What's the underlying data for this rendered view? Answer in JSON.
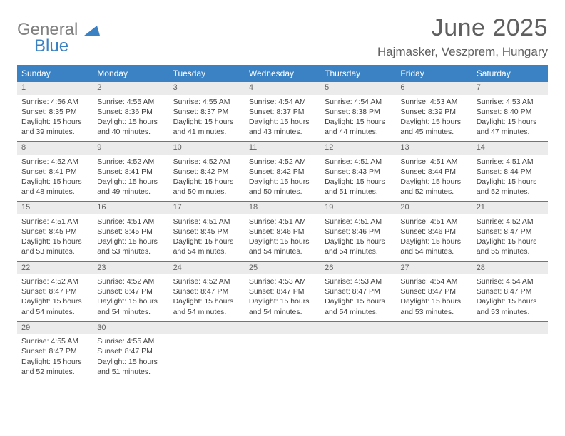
{
  "logo": {
    "general": "General",
    "blue": "Blue"
  },
  "title": "June 2025",
  "location": "Hajmasker, Veszprem, Hungary",
  "colors": {
    "header_bg": "#3b82c4",
    "header_text": "#ffffff",
    "daynum_bg": "#ebebeb",
    "body_text": "#404040",
    "title_text": "#606060"
  },
  "daynames": [
    "Sunday",
    "Monday",
    "Tuesday",
    "Wednesday",
    "Thursday",
    "Friday",
    "Saturday"
  ],
  "weeks": [
    [
      {
        "n": "1",
        "sr": "4:56 AM",
        "ss": "8:35 PM",
        "dl": "15 hours and 39 minutes."
      },
      {
        "n": "2",
        "sr": "4:55 AM",
        "ss": "8:36 PM",
        "dl": "15 hours and 40 minutes."
      },
      {
        "n": "3",
        "sr": "4:55 AM",
        "ss": "8:37 PM",
        "dl": "15 hours and 41 minutes."
      },
      {
        "n": "4",
        "sr": "4:54 AM",
        "ss": "8:37 PM",
        "dl": "15 hours and 43 minutes."
      },
      {
        "n": "5",
        "sr": "4:54 AM",
        "ss": "8:38 PM",
        "dl": "15 hours and 44 minutes."
      },
      {
        "n": "6",
        "sr": "4:53 AM",
        "ss": "8:39 PM",
        "dl": "15 hours and 45 minutes."
      },
      {
        "n": "7",
        "sr": "4:53 AM",
        "ss": "8:40 PM",
        "dl": "15 hours and 47 minutes."
      }
    ],
    [
      {
        "n": "8",
        "sr": "4:52 AM",
        "ss": "8:41 PM",
        "dl": "15 hours and 48 minutes."
      },
      {
        "n": "9",
        "sr": "4:52 AM",
        "ss": "8:41 PM",
        "dl": "15 hours and 49 minutes."
      },
      {
        "n": "10",
        "sr": "4:52 AM",
        "ss": "8:42 PM",
        "dl": "15 hours and 50 minutes."
      },
      {
        "n": "11",
        "sr": "4:52 AM",
        "ss": "8:42 PM",
        "dl": "15 hours and 50 minutes."
      },
      {
        "n": "12",
        "sr": "4:51 AM",
        "ss": "8:43 PM",
        "dl": "15 hours and 51 minutes."
      },
      {
        "n": "13",
        "sr": "4:51 AM",
        "ss": "8:44 PM",
        "dl": "15 hours and 52 minutes."
      },
      {
        "n": "14",
        "sr": "4:51 AM",
        "ss": "8:44 PM",
        "dl": "15 hours and 52 minutes."
      }
    ],
    [
      {
        "n": "15",
        "sr": "4:51 AM",
        "ss": "8:45 PM",
        "dl": "15 hours and 53 minutes."
      },
      {
        "n": "16",
        "sr": "4:51 AM",
        "ss": "8:45 PM",
        "dl": "15 hours and 53 minutes."
      },
      {
        "n": "17",
        "sr": "4:51 AM",
        "ss": "8:45 PM",
        "dl": "15 hours and 54 minutes."
      },
      {
        "n": "18",
        "sr": "4:51 AM",
        "ss": "8:46 PM",
        "dl": "15 hours and 54 minutes."
      },
      {
        "n": "19",
        "sr": "4:51 AM",
        "ss": "8:46 PM",
        "dl": "15 hours and 54 minutes."
      },
      {
        "n": "20",
        "sr": "4:51 AM",
        "ss": "8:46 PM",
        "dl": "15 hours and 54 minutes."
      },
      {
        "n": "21",
        "sr": "4:52 AM",
        "ss": "8:47 PM",
        "dl": "15 hours and 55 minutes."
      }
    ],
    [
      {
        "n": "22",
        "sr": "4:52 AM",
        "ss": "8:47 PM",
        "dl": "15 hours and 54 minutes."
      },
      {
        "n": "23",
        "sr": "4:52 AM",
        "ss": "8:47 PM",
        "dl": "15 hours and 54 minutes."
      },
      {
        "n": "24",
        "sr": "4:52 AM",
        "ss": "8:47 PM",
        "dl": "15 hours and 54 minutes."
      },
      {
        "n": "25",
        "sr": "4:53 AM",
        "ss": "8:47 PM",
        "dl": "15 hours and 54 minutes."
      },
      {
        "n": "26",
        "sr": "4:53 AM",
        "ss": "8:47 PM",
        "dl": "15 hours and 54 minutes."
      },
      {
        "n": "27",
        "sr": "4:54 AM",
        "ss": "8:47 PM",
        "dl": "15 hours and 53 minutes."
      },
      {
        "n": "28",
        "sr": "4:54 AM",
        "ss": "8:47 PM",
        "dl": "15 hours and 53 minutes."
      }
    ],
    [
      {
        "n": "29",
        "sr": "4:55 AM",
        "ss": "8:47 PM",
        "dl": "15 hours and 52 minutes."
      },
      {
        "n": "30",
        "sr": "4:55 AM",
        "ss": "8:47 PM",
        "dl": "15 hours and 51 minutes."
      },
      null,
      null,
      null,
      null,
      null
    ]
  ],
  "labels": {
    "sunrise": "Sunrise:",
    "sunset": "Sunset:",
    "daylight": "Daylight:"
  }
}
